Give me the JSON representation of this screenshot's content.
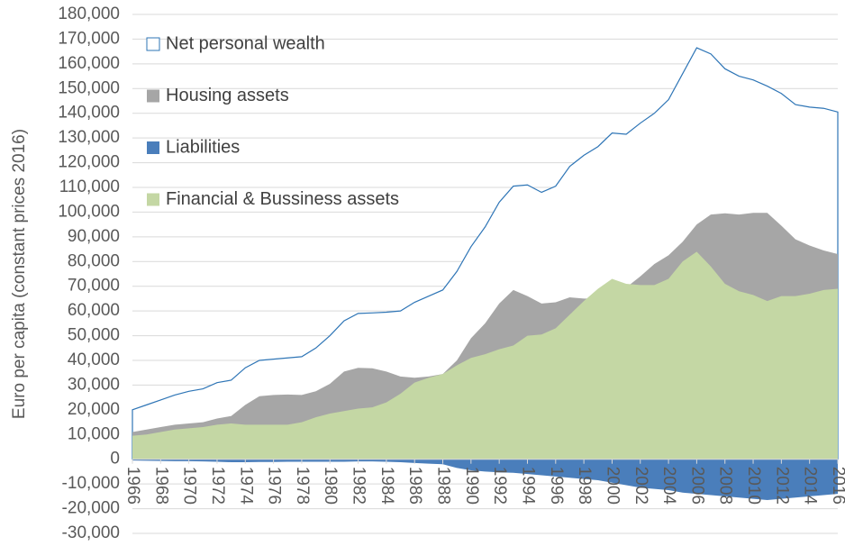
{
  "chart_data": {
    "type": "area",
    "y_label": "Euro per capita (constant prices 2016)",
    "x": [
      1966,
      1967,
      1968,
      1969,
      1970,
      1971,
      1972,
      1973,
      1974,
      1975,
      1976,
      1977,
      1978,
      1979,
      1980,
      1981,
      1982,
      1983,
      1984,
      1985,
      1986,
      1987,
      1988,
      1989,
      1990,
      1991,
      1992,
      1993,
      1994,
      1995,
      1996,
      1997,
      1998,
      1999,
      2000,
      2001,
      2002,
      2003,
      2004,
      2005,
      2006,
      2007,
      2008,
      2009,
      2010,
      2011,
      2012,
      2013,
      2014,
      2015,
      2016
    ],
    "xlim": [
      1966,
      2016
    ],
    "xticks": [
      1966,
      1968,
      1970,
      1972,
      1974,
      1976,
      1978,
      1980,
      1982,
      1984,
      1986,
      1988,
      1990,
      1992,
      1994,
      1996,
      1998,
      2000,
      2002,
      2004,
      2006,
      2008,
      2010,
      2012,
      2014,
      2016
    ],
    "ylim": [
      -30000,
      180000
    ],
    "yticks": [
      {
        "value": -30000,
        "label": "-30,000"
      },
      {
        "value": -20000,
        "label": "-20,000"
      },
      {
        "value": -10000,
        "label": "-10,000"
      },
      0,
      {
        "value": 10000,
        "label": "10,000"
      },
      {
        "value": 20000,
        "label": "20,000"
      },
      {
        "value": 30000,
        "label": "30,000"
      },
      {
        "value": 40000,
        "label": "40,000"
      },
      {
        "value": 50000,
        "label": "50,000"
      },
      {
        "value": 60000,
        "label": "60,000"
      },
      {
        "value": 70000,
        "label": "70,000"
      },
      {
        "value": 80000,
        "label": "80,000"
      },
      {
        "value": 90000,
        "label": "90,000"
      },
      {
        "value": 100000,
        "label": "100,000"
      },
      {
        "value": 110000,
        "label": "110,000"
      },
      {
        "value": 120000,
        "label": "120,000"
      },
      {
        "value": 130000,
        "label": "130,000"
      },
      {
        "value": 140000,
        "label": "140,000"
      },
      {
        "value": 150000,
        "label": "150,000"
      },
      {
        "value": 160000,
        "label": "160,000"
      },
      {
        "value": 170000,
        "label": "170,000"
      },
      {
        "value": 180000,
        "label": "180,000"
      }
    ],
    "grid": true,
    "legend": "upper left",
    "series": [
      {
        "name": "Net personal wealth",
        "color": "#2e75b6",
        "fill": "#ffffff",
        "values": [
          20000,
          22000,
          24000,
          26000,
          27500,
          28500,
          31000,
          32000,
          37000,
          40000,
          40500,
          41000,
          41500,
          45000,
          50000,
          56000,
          59000,
          59200,
          59500,
          60000,
          63500,
          66000,
          68500,
          76000,
          86000,
          94000,
          104000,
          110500,
          111000,
          108000,
          110500,
          118500,
          123000,
          126500,
          132000,
          131500,
          136000,
          140000,
          145500,
          156000,
          166500,
          164000,
          158000,
          155000,
          153500,
          151000,
          148000,
          143500,
          142500,
          142000,
          140500
        ]
      },
      {
        "name": "Housing assets",
        "color": "#a6a6a6",
        "values": [
          11000,
          12000,
          13000,
          14000,
          14500,
          15000,
          16500,
          17500,
          22000,
          25500,
          26000,
          26200,
          26000,
          27500,
          30500,
          35500,
          37000,
          36800,
          35500,
          33500,
          33000,
          33500,
          34500,
          40000,
          49000,
          55000,
          63000,
          68500,
          66000,
          63000,
          63500,
          65500,
          65000,
          65000,
          67000,
          69500,
          74000,
          79000,
          82500,
          88000,
          95000,
          99000,
          99500,
          99000,
          99700,
          99700,
          94500,
          89000,
          86500,
          84500,
          83000
        ]
      },
      {
        "name": "Liabilities",
        "color": "#4a7ebb",
        "values": [
          -500,
          -600,
          -700,
          -800,
          -800,
          -900,
          -1000,
          -1200,
          -1200,
          -1100,
          -1100,
          -1000,
          -1000,
          -1000,
          -1000,
          -1000,
          -900,
          -900,
          -1000,
          -1200,
          -1500,
          -1800,
          -2000,
          -3500,
          -4500,
          -5000,
          -5300,
          -5500,
          -6000,
          -6500,
          -7000,
          -7500,
          -8000,
          -8500,
          -9500,
          -10500,
          -11500,
          -12000,
          -12500,
          -13500,
          -14000,
          -14500,
          -15000,
          -15500,
          -16000,
          -16500,
          -16000,
          -15500,
          -15000,
          -14500,
          -14000
        ]
      },
      {
        "name": "Financial & Bussiness assets",
        "color": "#c4d7a4",
        "values": [
          9500,
          10000,
          11000,
          12000,
          12500,
          13000,
          14000,
          14500,
          14000,
          14000,
          14000,
          14000,
          15000,
          17000,
          18500,
          19500,
          20500,
          21000,
          23000,
          26500,
          31000,
          33000,
          34500,
          38000,
          41000,
          42500,
          44500,
          46000,
          50000,
          50500,
          53000,
          58500,
          64000,
          69000,
          73000,
          71000,
          70500,
          70500,
          73000,
          80000,
          84000,
          78000,
          71000,
          68000,
          66500,
          64000,
          66000,
          66000,
          67000,
          68500,
          69000
        ]
      }
    ]
  }
}
